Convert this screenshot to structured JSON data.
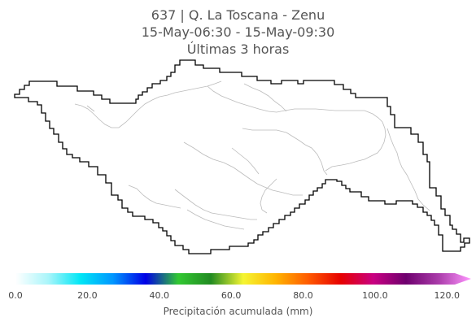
{
  "title": {
    "line1": "637 | Q. La Toscana - Zenu",
    "line2": "15-May-06:30 - 15-May-09:30",
    "line3": "Últimas 3 horas"
  },
  "colorbar": {
    "label": "Precipitación acumulada (mm)",
    "min": 0.0,
    "max": 125.0,
    "extend": "max",
    "ticks": [
      {
        "value": 0,
        "label": "0.0"
      },
      {
        "value": 20,
        "label": "20.0"
      },
      {
        "value": 40,
        "label": "40.0"
      },
      {
        "value": 60,
        "label": "60.0"
      },
      {
        "value": 80,
        "label": "80.0"
      },
      {
        "value": 100,
        "label": "100.0"
      },
      {
        "value": 120,
        "label": "120.0"
      }
    ],
    "colors": [
      "#ffffff",
      "#aaf5fa",
      "#00e6f5",
      "#0096ff",
      "#0000e6",
      "#32c832",
      "#228b22",
      "#f5f532",
      "#ffb400",
      "#ff5a00",
      "#e60000",
      "#c80082",
      "#6e006e",
      "#aa3caa",
      "#ff96ff"
    ]
  },
  "map": {
    "basin_outline_color": "#000000",
    "drainage_color": "#bbbbbb"
  }
}
